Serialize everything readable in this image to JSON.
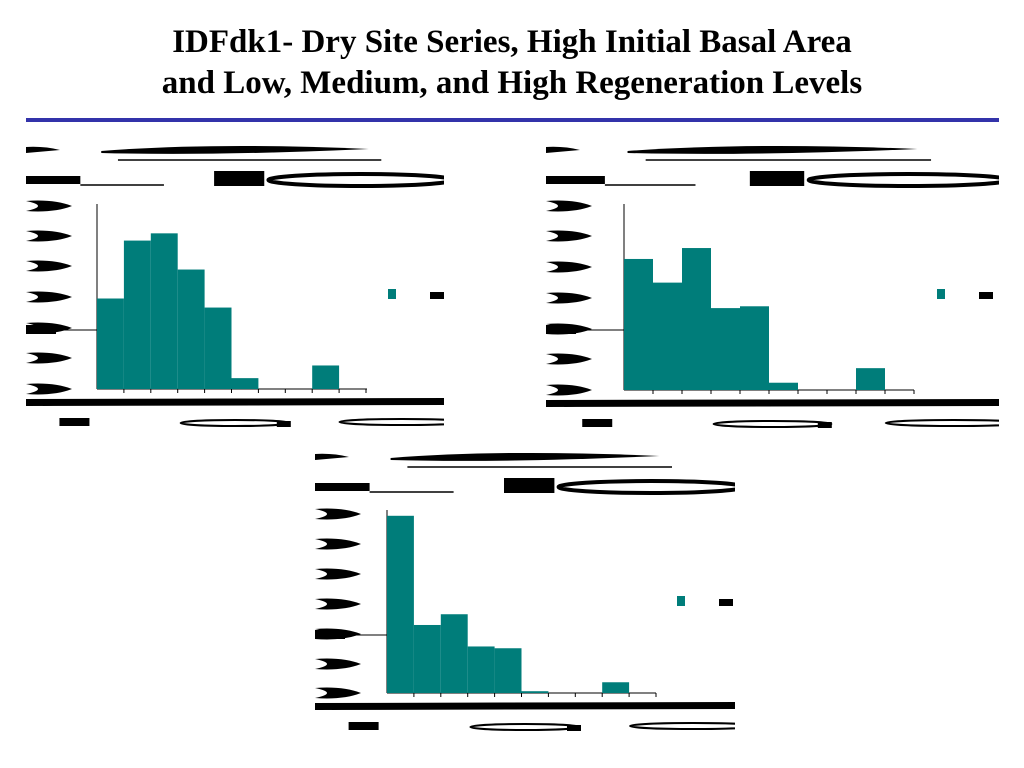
{
  "slide": {
    "title_line1": "IDFdk1- Dry Site Series, High Initial Basal Area",
    "title_line2": "and Low, Medium, and High Regeneration Levels",
    "rule_color": "#3333aa"
  },
  "colors": {
    "bar": "#007d7a",
    "ink": "#000000"
  },
  "chart_data": [
    {
      "type": "bar",
      "values": [
        0.5,
        0.82,
        0.86,
        0.66,
        0.45,
        0.06,
        0,
        0,
        0.13,
        0
      ],
      "ylim": [
        0,
        1
      ]
    },
    {
      "type": "bar",
      "values": [
        0.72,
        0.59,
        0.78,
        0.45,
        0.46,
        0.04,
        0,
        0,
        0.12,
        0
      ],
      "ylim": [
        0,
        1
      ]
    },
    {
      "type": "bar",
      "values": [
        0.99,
        0.38,
        0.44,
        0.26,
        0.25,
        0.01,
        0,
        0,
        0.06,
        0
      ],
      "ylim": [
        0,
        1
      ]
    }
  ]
}
